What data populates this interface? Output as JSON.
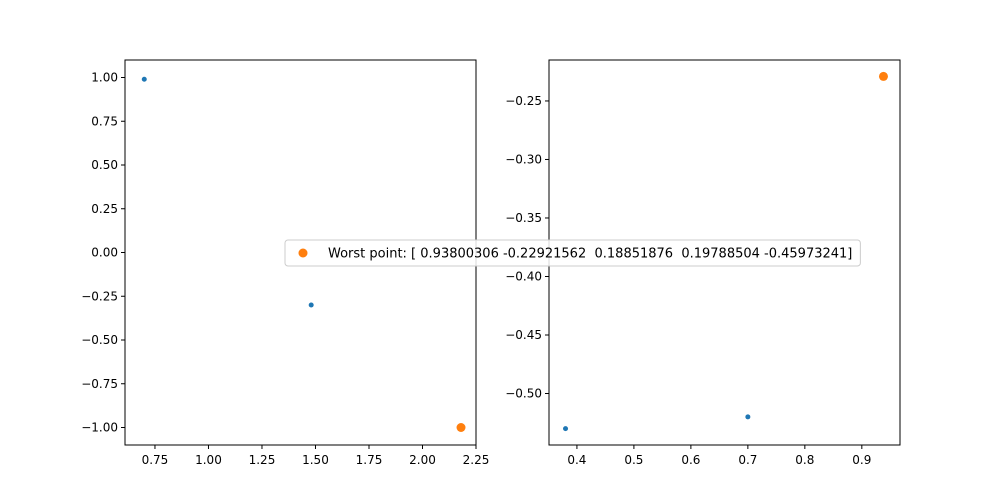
{
  "chart_data": [
    {
      "type": "scatter",
      "title": "",
      "xlabel": "",
      "ylabel": "",
      "xlim": [
        0.61,
        2.25
      ],
      "ylim": [
        -1.1,
        1.1
      ],
      "xticks": [
        0.75,
        1.0,
        1.25,
        1.5,
        1.75,
        2.0,
        2.25
      ],
      "xtick_labels": [
        "0.75",
        "1.00",
        "1.25",
        "1.50",
        "1.75",
        "2.00",
        "2.25"
      ],
      "yticks": [
        -1.0,
        -0.75,
        -0.5,
        -0.25,
        0.0,
        0.25,
        0.5,
        0.75,
        1.0
      ],
      "ytick_labels": [
        "−1.00",
        "−0.75",
        "−0.50",
        "−0.25",
        "0.00",
        "0.25",
        "0.50",
        "0.75",
        "1.00"
      ],
      "series": [
        {
          "color": "#1f77b4",
          "marker_size": "small",
          "x": [
            0.7,
            1.48
          ],
          "y": [
            0.99,
            -0.3
          ]
        },
        {
          "color": "#ff7f0e",
          "marker_size": "large",
          "x": [
            2.18
          ],
          "y": [
            -1.0
          ]
        }
      ]
    },
    {
      "type": "scatter",
      "title": "",
      "xlabel": "",
      "ylabel": "",
      "xlim": [
        0.351,
        0.967
      ],
      "ylim": [
        -0.544,
        -0.215
      ],
      "xticks": [
        0.4,
        0.5,
        0.6,
        0.7,
        0.8,
        0.9
      ],
      "xtick_labels": [
        "0.4",
        "0.5",
        "0.6",
        "0.7",
        "0.8",
        "0.9"
      ],
      "yticks": [
        -0.5,
        -0.45,
        -0.4,
        -0.35,
        -0.3,
        -0.25
      ],
      "ytick_labels": [
        "−0.50",
        "−0.45",
        "−0.40",
        "−0.35",
        "−0.30",
        "−0.25"
      ],
      "series": [
        {
          "color": "#1f77b4",
          "marker_size": "small",
          "x": [
            0.38,
            0.7
          ],
          "y": [
            -0.53,
            -0.52
          ]
        },
        {
          "color": "#ff7f0e",
          "marker_size": "large",
          "x": [
            0.938
          ],
          "y": [
            -0.229
          ]
        }
      ]
    }
  ],
  "legend": {
    "placement": "center",
    "marker_color": "#ff7f0e",
    "label": "Worst point: [ 0.93800306 -0.22921562  0.18851876  0.19788504 -0.45973241]"
  }
}
